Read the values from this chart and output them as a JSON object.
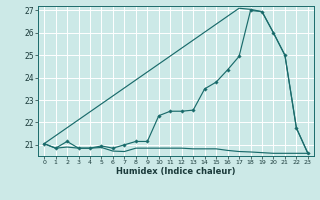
{
  "xlabel": "Humidex (Indice chaleur)",
  "bg_color": "#cce9e7",
  "line_color": "#1a6b6b",
  "grid_color": "#ffffff",
  "xlim": [
    -0.5,
    23.5
  ],
  "ylim": [
    20.5,
    27.2
  ],
  "yticks": [
    21,
    22,
    23,
    24,
    25,
    26,
    27
  ],
  "xticks": [
    0,
    1,
    2,
    3,
    4,
    5,
    6,
    7,
    8,
    9,
    10,
    11,
    12,
    13,
    14,
    15,
    16,
    17,
    18,
    19,
    20,
    21,
    22,
    23
  ],
  "line1_x": [
    0,
    1,
    2,
    3,
    4,
    5,
    6,
    7,
    8,
    9,
    10,
    11,
    12,
    13,
    14,
    15,
    16,
    17,
    18,
    19,
    20,
    21,
    22,
    23
  ],
  "line1_y": [
    21.05,
    20.85,
    20.9,
    20.85,
    20.85,
    20.88,
    20.72,
    20.7,
    20.85,
    20.85,
    20.85,
    20.85,
    20.85,
    20.82,
    20.82,
    20.82,
    20.75,
    20.7,
    20.68,
    20.65,
    20.62,
    20.62,
    20.62,
    20.62
  ],
  "line2_x": [
    0,
    1,
    2,
    3,
    4,
    5,
    6,
    7,
    8,
    9,
    10,
    11,
    12,
    13,
    14,
    15,
    16,
    17,
    18,
    19,
    20,
    21,
    22,
    23
  ],
  "line2_y": [
    21.05,
    20.85,
    21.15,
    20.85,
    20.85,
    20.95,
    20.85,
    21.0,
    21.15,
    21.15,
    22.3,
    22.5,
    22.5,
    22.55,
    23.5,
    23.8,
    24.35,
    24.95,
    27.0,
    26.95,
    26.0,
    25.0,
    21.75,
    20.62
  ],
  "line3_x": [
    0,
    17,
    18,
    19,
    20,
    21,
    22,
    23
  ],
  "line3_y": [
    21.05,
    27.1,
    27.05,
    26.95,
    26.0,
    25.0,
    21.75,
    20.62
  ]
}
